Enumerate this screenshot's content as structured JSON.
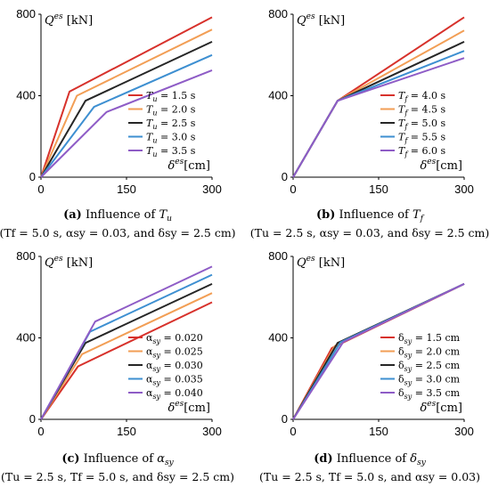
{
  "figure": {
    "panels": [
      {
        "caption_letter": "(a)",
        "caption_text": "Influence of",
        "caption_symbol": "T",
        "caption_symbol_sub": "u",
        "caption_params": "(Tf = 5.0 s, αsy = 0.03, and δsy = 2.5 cm)"
      },
      {
        "caption_letter": "(b)",
        "caption_text": "Influence of",
        "caption_symbol": "T",
        "caption_symbol_sub": "f",
        "caption_params": "(Tu = 2.5 s, αsy = 0.03, and δsy = 2.5 cm)"
      },
      {
        "caption_letter": "(c)",
        "caption_text": "Influence of",
        "caption_symbol": "α",
        "caption_symbol_sub": "sy",
        "caption_params": "(Tu = 2.5 s, Tf = 5.0 s, and δsy = 2.5 cm)"
      },
      {
        "caption_letter": "(d)",
        "caption_text": "Influence of",
        "caption_symbol": "δ",
        "caption_symbol_sub": "sy",
        "caption_params": "(Tu = 2.5 s, Tf = 5.0 s, and αsy = 0.03)"
      }
    ]
  },
  "chart_data": [
    {
      "type": "line",
      "ylabel": "Q^es [kN]",
      "xlabel": "δ^es [cm]",
      "xlim": [
        0,
        300
      ],
      "ylim": [
        0,
        800
      ],
      "xticks": [
        "0",
        "150",
        "300"
      ],
      "yticks": [
        "0",
        "400",
        "800"
      ],
      "series": [
        {
          "name": "Tu = 1.5 s",
          "color": "#d7312b",
          "x": [
            0,
            50,
            300
          ],
          "y": [
            0,
            420,
            785
          ]
        },
        {
          "name": "Tu = 2.0 s",
          "color": "#f29e55",
          "x": [
            0,
            63,
            300
          ],
          "y": [
            0,
            400,
            725
          ]
        },
        {
          "name": "Tu = 2.5 s",
          "color": "#262626",
          "x": [
            0,
            78,
            300
          ],
          "y": [
            0,
            375,
            665
          ]
        },
        {
          "name": "Tu = 3.0 s",
          "color": "#3d8fd1",
          "x": [
            0,
            93,
            300
          ],
          "y": [
            0,
            345,
            600
          ]
        },
        {
          "name": "Tu = 3.5 s",
          "color": "#8e5cc6",
          "x": [
            0,
            115,
            300
          ],
          "y": [
            0,
            320,
            525
          ]
        }
      ]
    },
    {
      "type": "line",
      "ylabel": "Q^es [kN]",
      "xlabel": "δ^es [cm]",
      "xlim": [
        0,
        300
      ],
      "ylim": [
        0,
        800
      ],
      "xticks": [
        "0",
        "150",
        "300"
      ],
      "yticks": [
        "0",
        "400",
        "800"
      ],
      "series": [
        {
          "name": "Tf = 4.0 s",
          "color": "#d7312b",
          "x": [
            0,
            78,
            300
          ],
          "y": [
            0,
            375,
            785
          ]
        },
        {
          "name": "Tf = 4.5 s",
          "color": "#f29e55",
          "x": [
            0,
            78,
            300
          ],
          "y": [
            0,
            375,
            720
          ]
        },
        {
          "name": "Tf = 5.0 s",
          "color": "#262626",
          "x": [
            0,
            78,
            300
          ],
          "y": [
            0,
            375,
            665
          ]
        },
        {
          "name": "Tf = 5.5 s",
          "color": "#3d8fd1",
          "x": [
            0,
            78,
            300
          ],
          "y": [
            0,
            375,
            620
          ]
        },
        {
          "name": "Tf = 6.0 s",
          "color": "#8e5cc6",
          "x": [
            0,
            78,
            300
          ],
          "y": [
            0,
            375,
            585
          ]
        }
      ]
    },
    {
      "type": "line",
      "ylabel": "Q^es [kN]",
      "xlabel": "δ^es [cm]",
      "xlim": [
        0,
        300
      ],
      "ylim": [
        0,
        800
      ],
      "xticks": [
        "0",
        "150",
        "300"
      ],
      "yticks": [
        "0",
        "400",
        "800"
      ],
      "series": [
        {
          "name": "αsy = 0.020",
          "color": "#d7312b",
          "x": [
            0,
            65,
            300
          ],
          "y": [
            0,
            260,
            575
          ]
        },
        {
          "name": "αsy = 0.025",
          "color": "#f29e55",
          "x": [
            0,
            72,
            300
          ],
          "y": [
            0,
            320,
            620
          ]
        },
        {
          "name": "αsy = 0.030",
          "color": "#262626",
          "x": [
            0,
            78,
            300
          ],
          "y": [
            0,
            375,
            665
          ]
        },
        {
          "name": "αsy = 0.035",
          "color": "#3d8fd1",
          "x": [
            0,
            86,
            300
          ],
          "y": [
            0,
            430,
            710
          ]
        },
        {
          "name": "αsy = 0.040",
          "color": "#8e5cc6",
          "x": [
            0,
            95,
            300
          ],
          "y": [
            0,
            480,
            750
          ]
        }
      ]
    },
    {
      "type": "line",
      "ylabel": "Q^es [kN]",
      "xlabel": "δ^es [cm]",
      "xlim": [
        0,
        300
      ],
      "ylim": [
        0,
        800
      ],
      "xticks": [
        "0",
        "150",
        "300"
      ],
      "yticks": [
        "0",
        "400",
        "800"
      ],
      "series": [
        {
          "name": "δsy = 1.5 cm",
          "color": "#d7312b",
          "x": [
            0,
            68,
            300
          ],
          "y": [
            0,
            350,
            665
          ]
        },
        {
          "name": "δsy = 2.0 cm",
          "color": "#f29e55",
          "x": [
            0,
            73,
            300
          ],
          "y": [
            0,
            360,
            665
          ]
        },
        {
          "name": "δsy = 2.5 cm",
          "color": "#262626",
          "x": [
            0,
            78,
            300
          ],
          "y": [
            0,
            375,
            665
          ]
        },
        {
          "name": "δsy = 3.0 cm",
          "color": "#3d8fd1",
          "x": [
            0,
            83,
            300
          ],
          "y": [
            0,
            378,
            665
          ]
        },
        {
          "name": "δsy = 3.5 cm",
          "color": "#8e5cc6",
          "x": [
            0,
            88,
            300
          ],
          "y": [
            0,
            380,
            665
          ]
        }
      ]
    }
  ]
}
